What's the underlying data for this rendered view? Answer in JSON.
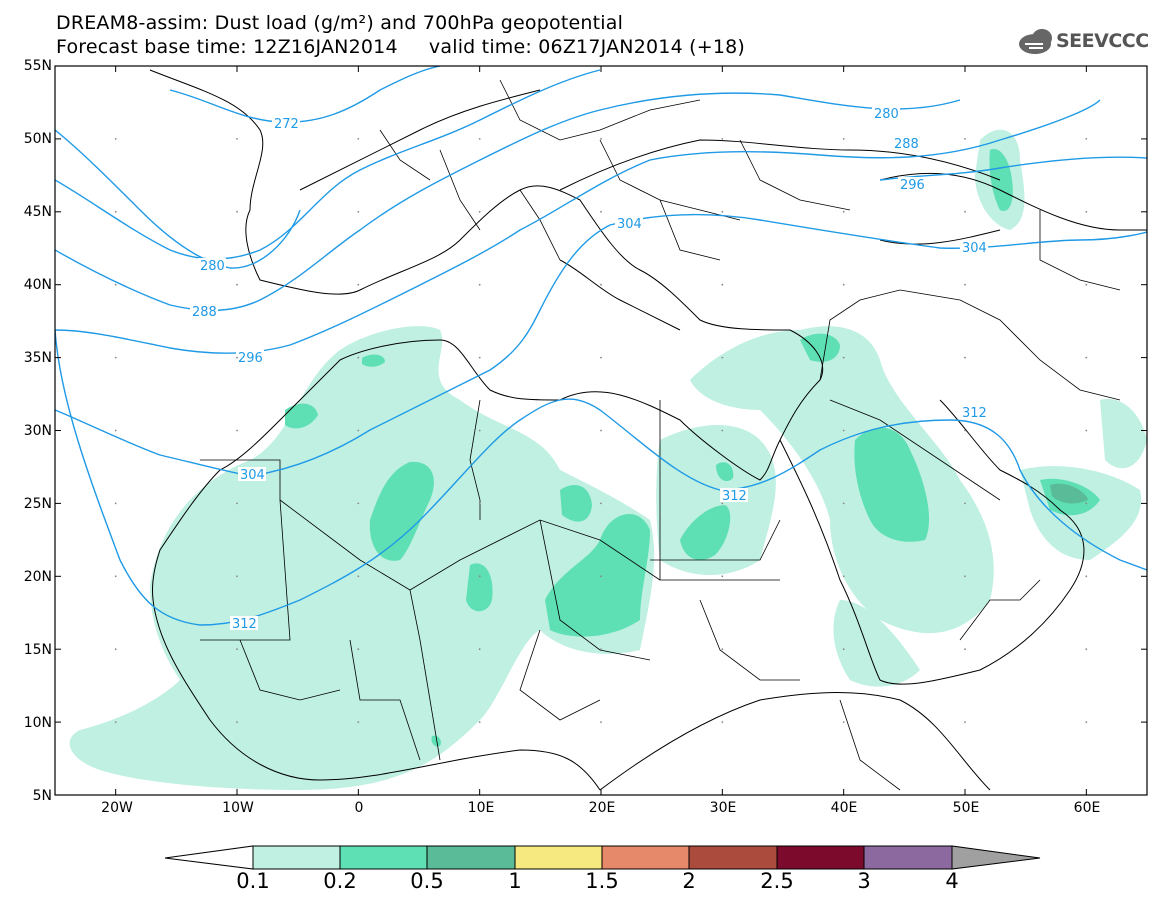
{
  "header": {
    "title_line1": "DREAM8-assim: Dust load (g/m²) and 700hPa geopotential",
    "title_line2": "Forecast base time: 12Z16JAN2014     valid time: 06Z17JAN2014 (+18)",
    "logo_text": "SEEVCCC"
  },
  "axes": {
    "lat_labels": [
      "55N",
      "50N",
      "45N",
      "40N",
      "35N",
      "30N",
      "25N",
      "20N",
      "15N",
      "10N",
      "5N"
    ],
    "lon_labels": [
      "20W",
      "10W",
      "0",
      "10E",
      "20E",
      "30E",
      "40E",
      "50E",
      "60E"
    ]
  },
  "contours": {
    "levels": [
      "272",
      "280",
      "288",
      "296",
      "304",
      "312"
    ]
  },
  "colorbar": {
    "labels": [
      "0.1",
      "0.2",
      "0.5",
      "1",
      "1.5",
      "2",
      "2.5",
      "3",
      "4"
    ],
    "colors": [
      "#ffffff",
      "#bff0e2",
      "#5fdfb4",
      "#5abb98",
      "#f5e97f",
      "#e6896a",
      "#ab4b3e",
      "#7b0a2c",
      "#8c6aa0",
      "#a0a0a0"
    ]
  },
  "colors": {
    "contour_line": "#1f9ae6",
    "dust_light": "#bff0e2",
    "dust_medium": "#5fdfb4",
    "dust_dark": "#5abb98"
  }
}
